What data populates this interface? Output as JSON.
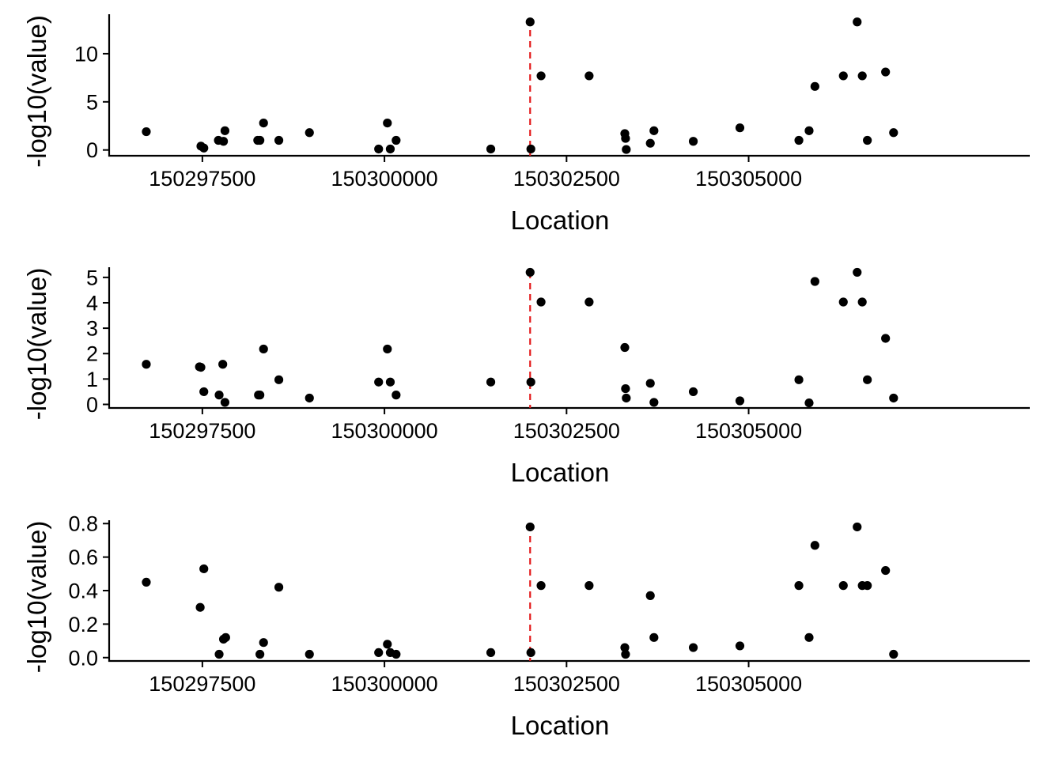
{
  "chart_data": [
    {
      "type": "scatter",
      "xlabel": "Location",
      "ylabel": "-log10(value)",
      "xlim": [
        150296220,
        150308860
      ],
      "ylim": [
        -0.6,
        14.1
      ],
      "xticks": [
        150297500,
        150300000,
        150302500,
        150305000
      ],
      "xtick_labels": [
        "150297500",
        "150300000",
        "150302500",
        "150305000"
      ],
      "yticks": [
        0,
        5,
        10
      ],
      "ytick_labels": [
        "0",
        "5",
        "10"
      ],
      "vline": {
        "x": 150302000,
        "color": "#e31a1c",
        "style": "dashed"
      },
      "point_color": "#000000",
      "grid": false,
      "points": [
        {
          "x": 150296730,
          "y": 1.9
        },
        {
          "x": 150297480,
          "y": 0.4
        },
        {
          "x": 150297520,
          "y": 0.2
        },
        {
          "x": 150297720,
          "y": 1.0
        },
        {
          "x": 150297790,
          "y": 0.9
        },
        {
          "x": 150297810,
          "y": 2.0
        },
        {
          "x": 150298260,
          "y": 1.0
        },
        {
          "x": 150298290,
          "y": 1.0
        },
        {
          "x": 150298340,
          "y": 2.8
        },
        {
          "x": 150298550,
          "y": 1.0
        },
        {
          "x": 150298970,
          "y": 1.8
        },
        {
          "x": 150299920,
          "y": 0.1
        },
        {
          "x": 150300040,
          "y": 2.8
        },
        {
          "x": 150300080,
          "y": 0.1
        },
        {
          "x": 150300160,
          "y": 1.0
        },
        {
          "x": 150301460,
          "y": 0.1
        },
        {
          "x": 150302000,
          "y": 13.3
        },
        {
          "x": 150302010,
          "y": 0.1
        },
        {
          "x": 150302150,
          "y": 7.7
        },
        {
          "x": 150302810,
          "y": 7.7
        },
        {
          "x": 150303300,
          "y": 1.7
        },
        {
          "x": 150303310,
          "y": 1.2
        },
        {
          "x": 150303320,
          "y": 0.05
        },
        {
          "x": 150303650,
          "y": 0.7
        },
        {
          "x": 150303700,
          "y": 2.0
        },
        {
          "x": 150304240,
          "y": 0.9
        },
        {
          "x": 150304880,
          "y": 2.3
        },
        {
          "x": 150305690,
          "y": 1.0
        },
        {
          "x": 150305830,
          "y": 2.0
        },
        {
          "x": 150305910,
          "y": 6.6
        },
        {
          "x": 150306300,
          "y": 7.7
        },
        {
          "x": 150306490,
          "y": 13.3
        },
        {
          "x": 150306560,
          "y": 7.7
        },
        {
          "x": 150306630,
          "y": 1.0
        },
        {
          "x": 150306880,
          "y": 8.1
        },
        {
          "x": 150306990,
          "y": 1.8
        }
      ]
    },
    {
      "type": "scatter",
      "xlabel": "Location",
      "ylabel": "-log10(value)",
      "xlim": [
        150296220,
        150308860
      ],
      "ylim": [
        -0.14,
        5.4
      ],
      "xticks": [
        150297500,
        150300000,
        150302500,
        150305000
      ],
      "xtick_labels": [
        "150297500",
        "150300000",
        "150302500",
        "150305000"
      ],
      "yticks": [
        0,
        1,
        2,
        3,
        4,
        5
      ],
      "ytick_labels": [
        "0",
        "1",
        "2",
        "3",
        "4",
        "5"
      ],
      "vline": {
        "x": 150302000,
        "color": "#e31a1c",
        "style": "dashed"
      },
      "point_color": "#000000",
      "grid": false,
      "points": [
        {
          "x": 150296730,
          "y": 1.58
        },
        {
          "x": 150297460,
          "y": 1.48
        },
        {
          "x": 150297480,
          "y": 1.46
        },
        {
          "x": 150297520,
          "y": 0.5
        },
        {
          "x": 150297730,
          "y": 0.37
        },
        {
          "x": 150297780,
          "y": 1.58
        },
        {
          "x": 150297810,
          "y": 0.08
        },
        {
          "x": 150298270,
          "y": 0.37
        },
        {
          "x": 150298290,
          "y": 0.37
        },
        {
          "x": 150298340,
          "y": 2.18
        },
        {
          "x": 150298550,
          "y": 0.97
        },
        {
          "x": 150298970,
          "y": 0.25
        },
        {
          "x": 150299920,
          "y": 0.88
        },
        {
          "x": 150300040,
          "y": 2.18
        },
        {
          "x": 150300080,
          "y": 0.88
        },
        {
          "x": 150300160,
          "y": 0.37
        },
        {
          "x": 150301460,
          "y": 0.88
        },
        {
          "x": 150302000,
          "y": 5.2
        },
        {
          "x": 150302010,
          "y": 0.88
        },
        {
          "x": 150302150,
          "y": 4.03
        },
        {
          "x": 150302810,
          "y": 4.03
        },
        {
          "x": 150303300,
          "y": 2.24
        },
        {
          "x": 150303310,
          "y": 0.62
        },
        {
          "x": 150303320,
          "y": 0.25
        },
        {
          "x": 150303650,
          "y": 0.83
        },
        {
          "x": 150303700,
          "y": 0.08
        },
        {
          "x": 150304240,
          "y": 0.5
        },
        {
          "x": 150304880,
          "y": 0.14
        },
        {
          "x": 150305690,
          "y": 0.97
        },
        {
          "x": 150305830,
          "y": 0.06
        },
        {
          "x": 150305910,
          "y": 4.84
        },
        {
          "x": 150306300,
          "y": 4.03
        },
        {
          "x": 150306490,
          "y": 5.2
        },
        {
          "x": 150306560,
          "y": 4.03
        },
        {
          "x": 150306630,
          "y": 0.97
        },
        {
          "x": 150306880,
          "y": 2.6
        },
        {
          "x": 150306990,
          "y": 0.25
        }
      ]
    },
    {
      "type": "scatter",
      "xlabel": "Location",
      "ylabel": "-log10(value)",
      "xlim": [
        150296220,
        150308860
      ],
      "ylim": [
        -0.02,
        0.82
      ],
      "xticks": [
        150297500,
        150300000,
        150302500,
        150305000
      ],
      "xtick_labels": [
        "150297500",
        "150300000",
        "150302500",
        "150305000"
      ],
      "yticks": [
        0,
        0.2,
        0.4,
        0.6,
        0.8
      ],
      "ytick_labels": [
        "0.0",
        "0.2",
        "0.4",
        "0.6",
        "0.8"
      ],
      "vline": {
        "x": 150302000,
        "color": "#e31a1c",
        "style": "dashed"
      },
      "point_color": "#000000",
      "grid": false,
      "points": [
        {
          "x": 150296730,
          "y": 0.45
        },
        {
          "x": 150297470,
          "y": 0.3
        },
        {
          "x": 150297520,
          "y": 0.53
        },
        {
          "x": 150297730,
          "y": 0.02
        },
        {
          "x": 150297790,
          "y": 0.11
        },
        {
          "x": 150297820,
          "y": 0.12
        },
        {
          "x": 150298290,
          "y": 0.02
        },
        {
          "x": 150298340,
          "y": 0.09
        },
        {
          "x": 150298550,
          "y": 0.42
        },
        {
          "x": 150298970,
          "y": 0.02
        },
        {
          "x": 150299920,
          "y": 0.03
        },
        {
          "x": 150300040,
          "y": 0.08
        },
        {
          "x": 150300080,
          "y": 0.03
        },
        {
          "x": 150300160,
          "y": 0.02
        },
        {
          "x": 150301460,
          "y": 0.03
        },
        {
          "x": 150302000,
          "y": 0.78
        },
        {
          "x": 150302010,
          "y": 0.03
        },
        {
          "x": 150302150,
          "y": 0.43
        },
        {
          "x": 150302810,
          "y": 0.43
        },
        {
          "x": 150303300,
          "y": 0.06
        },
        {
          "x": 150303310,
          "y": 0.02
        },
        {
          "x": 150303650,
          "y": 0.37
        },
        {
          "x": 150303700,
          "y": 0.12
        },
        {
          "x": 150304240,
          "y": 0.06
        },
        {
          "x": 150304880,
          "y": 0.07
        },
        {
          "x": 150305690,
          "y": 0.43
        },
        {
          "x": 150305830,
          "y": 0.12
        },
        {
          "x": 150305910,
          "y": 0.67
        },
        {
          "x": 150306300,
          "y": 0.43
        },
        {
          "x": 150306490,
          "y": 0.78
        },
        {
          "x": 150306560,
          "y": 0.43
        },
        {
          "x": 150306630,
          "y": 0.43
        },
        {
          "x": 150306880,
          "y": 0.52
        },
        {
          "x": 150306990,
          "y": 0.02
        }
      ]
    }
  ]
}
